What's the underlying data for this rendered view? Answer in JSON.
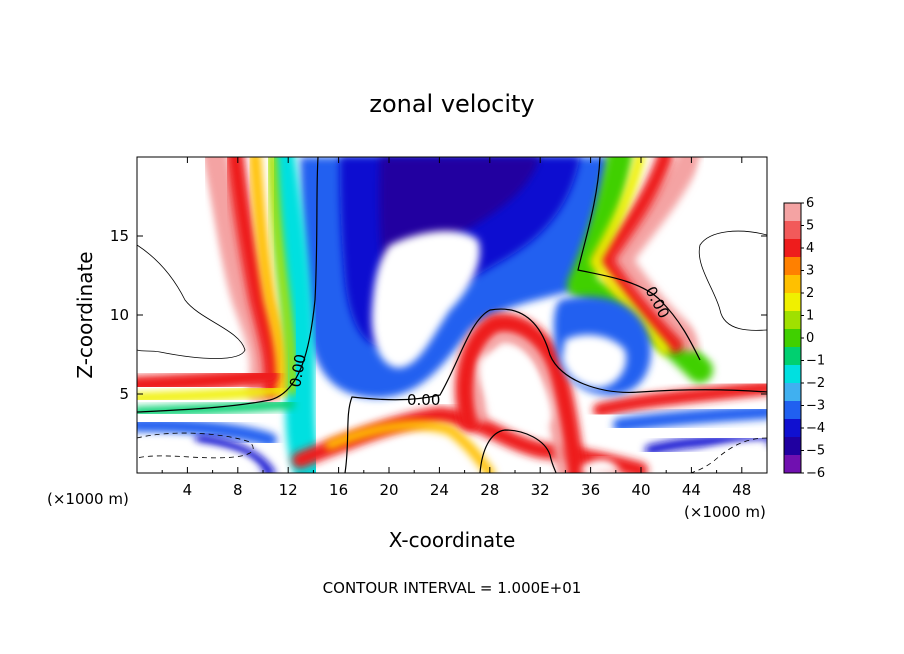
{
  "chart_data": {
    "type": "heatmap",
    "title": "zonal velocity",
    "xlabel": "X-coordinate",
    "ylabel": "Z-coordinate",
    "x_unit": "(×1000 m)",
    "y_unit": "(×1000 m)",
    "xlim": [
      0,
      50
    ],
    "ylim": [
      0,
      20
    ],
    "x_ticks": [
      "4",
      "8",
      "12",
      "16",
      "20",
      "24",
      "28",
      "32",
      "36",
      "40",
      "44",
      "48"
    ],
    "y_ticks": [
      "5",
      "10",
      "15"
    ],
    "colorbar": {
      "ticks": [
        "6",
        "5",
        "4",
        "3",
        "2",
        "1",
        "0",
        "−1",
        "−2",
        "−3",
        "−4",
        "−5",
        "−6"
      ],
      "range": [
        -6,
        6
      ],
      "colors": [
        "#f4a3a3",
        "#f25a5a",
        "#ee1c1c",
        "#ff8000",
        "#ffc000",
        "#f0f000",
        "#a0e000",
        "#40d000",
        "#00d070",
        "#00e0e0",
        "#40b0f0",
        "#2060f0",
        "#1010d0",
        "#2000a0",
        "#7010b0"
      ]
    },
    "contour_labels": [
      "0.00",
      "0.00",
      "0.00"
    ],
    "footer": "CONTOUR INTERVAL = 1.000E+01"
  }
}
